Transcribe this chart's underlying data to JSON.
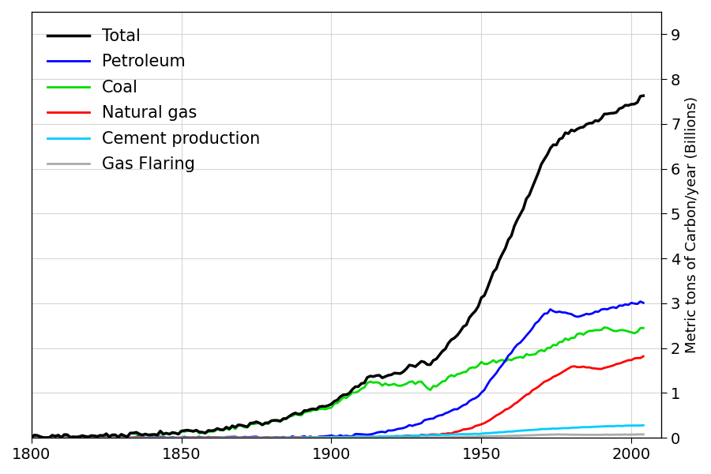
{
  "title": "",
  "ylabel": "Metric tons of Carbon/year (Billions)",
  "xlabel": "",
  "xlim": [
    1800,
    2010
  ],
  "ylim": [
    0,
    9.5
  ],
  "yticks": [
    0,
    1,
    2,
    3,
    4,
    5,
    6,
    7,
    8,
    9
  ],
  "xticks": [
    1800,
    1850,
    1900,
    1950,
    2000
  ],
  "legend_labels": [
    "Total",
    "Petroleum",
    "Coal",
    "Natural gas",
    "Cement production",
    "Gas Flaring"
  ],
  "legend_colors": [
    "#000000",
    "#0000ff",
    "#00dd00",
    "#ff0000",
    "#00ccff",
    "#aaaaaa"
  ],
  "line_widths": [
    2.5,
    2.0,
    2.0,
    2.0,
    2.0,
    2.0
  ],
  "background_color": "none",
  "grid_color": "#cccccc",
  "font_size_ticks": 14,
  "font_size_legend": 15,
  "font_size_ylabel": 13
}
